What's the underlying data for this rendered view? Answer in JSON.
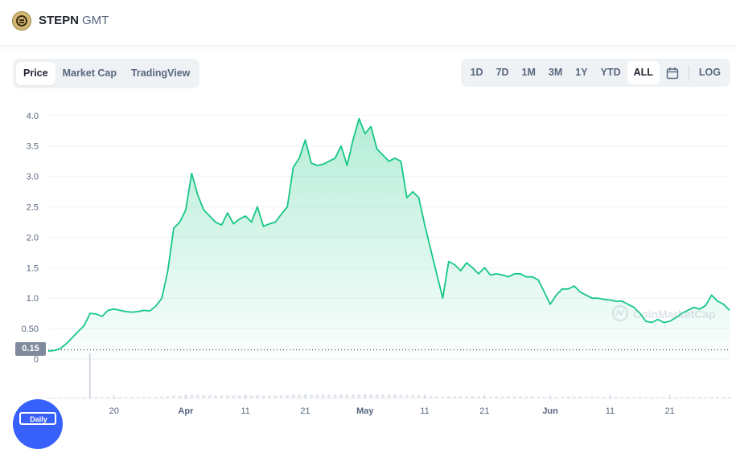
{
  "header": {
    "coin_name": "STEPN",
    "coin_symbol": "GMT",
    "logo_icon": "stepn-coin-icon"
  },
  "chart_tabs": [
    {
      "label": "Price",
      "active": true
    },
    {
      "label": "Market Cap",
      "active": false
    },
    {
      "label": "TradingView",
      "active": false
    }
  ],
  "time_ranges": [
    {
      "label": "1D",
      "active": false
    },
    {
      "label": "7D",
      "active": false
    },
    {
      "label": "1M",
      "active": false
    },
    {
      "label": "3M",
      "active": false
    },
    {
      "label": "1Y",
      "active": false
    },
    {
      "label": "YTD",
      "active": false
    },
    {
      "label": "ALL",
      "active": true
    }
  ],
  "calendar_icon": "calendar-icon",
  "log_label": "LOG",
  "current_price_tag": "0.15",
  "daily_label": "Daily",
  "watermark": "CoinMarketCap",
  "colors": {
    "line": "#16c784",
    "fill_top": "#16c784",
    "grid": "#eff2f5",
    "axis_text": "#58667e",
    "price_tag_bg": "#808a9d",
    "accent": "#3861fb"
  },
  "chart_data": {
    "type": "area",
    "title": "",
    "xlabel": "",
    "ylabel": "",
    "ylim": [
      0,
      4.2
    ],
    "y_ticks": [
      "0",
      "0.50",
      "1.0",
      "1.5",
      "2.0",
      "2.5",
      "3.0",
      "3.5",
      "4.0"
    ],
    "y_tick_values": [
      0,
      0.5,
      1.0,
      1.5,
      2.0,
      2.5,
      3.0,
      3.5,
      4.0
    ],
    "x_range": [
      "2022-03-09",
      "2022-07-01"
    ],
    "x_ticks": [
      {
        "date": "2022-03-20",
        "label": "20"
      },
      {
        "date": "2022-04-01",
        "label": "Apr"
      },
      {
        "date": "2022-04-11",
        "label": "11"
      },
      {
        "date": "2022-04-21",
        "label": "21"
      },
      {
        "date": "2022-05-01",
        "label": "May"
      },
      {
        "date": "2022-05-11",
        "label": "11"
      },
      {
        "date": "2022-05-21",
        "label": "21"
      },
      {
        "date": "2022-06-01",
        "label": "Jun"
      },
      {
        "date": "2022-06-11",
        "label": "11"
      },
      {
        "date": "2022-06-21",
        "label": "21"
      }
    ],
    "reference_line": 0.15,
    "series": [
      {
        "x": [
          "2022-03-09",
          "2022-03-10",
          "2022-03-11",
          "2022-03-12",
          "2022-03-13",
          "2022-03-14",
          "2022-03-15",
          "2022-03-16",
          "2022-03-17",
          "2022-03-18",
          "2022-03-19",
          "2022-03-20",
          "2022-03-21",
          "2022-03-22",
          "2022-03-23",
          "2022-03-24",
          "2022-03-25",
          "2022-03-26",
          "2022-03-27",
          "2022-03-28",
          "2022-03-29",
          "2022-03-30",
          "2022-03-31",
          "2022-04-01",
          "2022-04-02",
          "2022-04-03",
          "2022-04-04",
          "2022-04-05",
          "2022-04-06",
          "2022-04-07",
          "2022-04-08",
          "2022-04-09",
          "2022-04-10",
          "2022-04-11",
          "2022-04-12",
          "2022-04-13",
          "2022-04-14",
          "2022-04-15",
          "2022-04-16",
          "2022-04-17",
          "2022-04-18",
          "2022-04-19",
          "2022-04-20",
          "2022-04-21",
          "2022-04-22",
          "2022-04-23",
          "2022-04-24",
          "2022-04-25",
          "2022-04-26",
          "2022-04-27",
          "2022-04-28",
          "2022-04-29",
          "2022-04-30",
          "2022-05-01",
          "2022-05-02",
          "2022-05-03",
          "2022-05-04",
          "2022-05-05",
          "2022-05-06",
          "2022-05-07",
          "2022-05-08",
          "2022-05-09",
          "2022-05-10",
          "2022-05-11",
          "2022-05-12",
          "2022-05-13",
          "2022-05-14",
          "2022-05-15",
          "2022-05-16",
          "2022-05-17",
          "2022-05-18",
          "2022-05-19",
          "2022-05-20",
          "2022-05-21",
          "2022-05-22",
          "2022-05-23",
          "2022-05-24",
          "2022-05-25",
          "2022-05-26",
          "2022-05-27",
          "2022-05-28",
          "2022-05-29",
          "2022-05-30",
          "2022-05-31",
          "2022-06-01",
          "2022-06-02",
          "2022-06-03",
          "2022-06-04",
          "2022-06-05",
          "2022-06-06",
          "2022-06-07",
          "2022-06-08",
          "2022-06-09",
          "2022-06-10",
          "2022-06-11",
          "2022-06-12",
          "2022-06-13",
          "2022-06-14",
          "2022-06-15",
          "2022-06-16",
          "2022-06-17",
          "2022-06-18",
          "2022-06-19",
          "2022-06-20",
          "2022-06-21",
          "2022-06-22",
          "2022-06-23",
          "2022-06-24",
          "2022-06-25",
          "2022-06-26",
          "2022-06-27",
          "2022-06-28",
          "2022-06-29",
          "2022-06-30",
          "2022-07-01"
        ],
        "values": [
          0.13,
          0.14,
          0.17,
          0.25,
          0.35,
          0.45,
          0.55,
          0.75,
          0.74,
          0.7,
          0.8,
          0.82,
          0.8,
          0.78,
          0.77,
          0.78,
          0.8,
          0.79,
          0.87,
          1.0,
          1.45,
          2.15,
          2.25,
          2.45,
          3.05,
          2.7,
          2.45,
          2.35,
          2.25,
          2.2,
          2.4,
          2.22,
          2.3,
          2.35,
          2.25,
          2.5,
          2.18,
          2.22,
          2.25,
          2.38,
          2.5,
          3.15,
          3.3,
          3.6,
          3.22,
          3.18,
          3.2,
          3.25,
          3.3,
          3.5,
          3.18,
          3.6,
          3.95,
          3.7,
          3.82,
          3.45,
          3.35,
          3.25,
          3.3,
          3.25,
          2.65,
          2.75,
          2.65,
          2.2,
          1.8,
          1.4,
          1.0,
          1.6,
          1.55,
          1.45,
          1.58,
          1.5,
          1.4,
          1.5,
          1.38,
          1.4,
          1.38,
          1.35,
          1.4,
          1.4,
          1.35,
          1.35,
          1.3,
          1.1,
          0.9,
          1.05,
          1.15,
          1.15,
          1.2,
          1.1,
          1.05,
          1.0,
          1.0,
          0.98,
          0.97,
          0.95,
          0.95,
          0.9,
          0.85,
          0.75,
          0.62,
          0.6,
          0.65,
          0.6,
          0.62,
          0.68,
          0.75,
          0.8,
          0.85,
          0.82,
          0.88,
          1.05,
          0.95,
          0.9,
          0.8
        ]
      }
    ]
  }
}
